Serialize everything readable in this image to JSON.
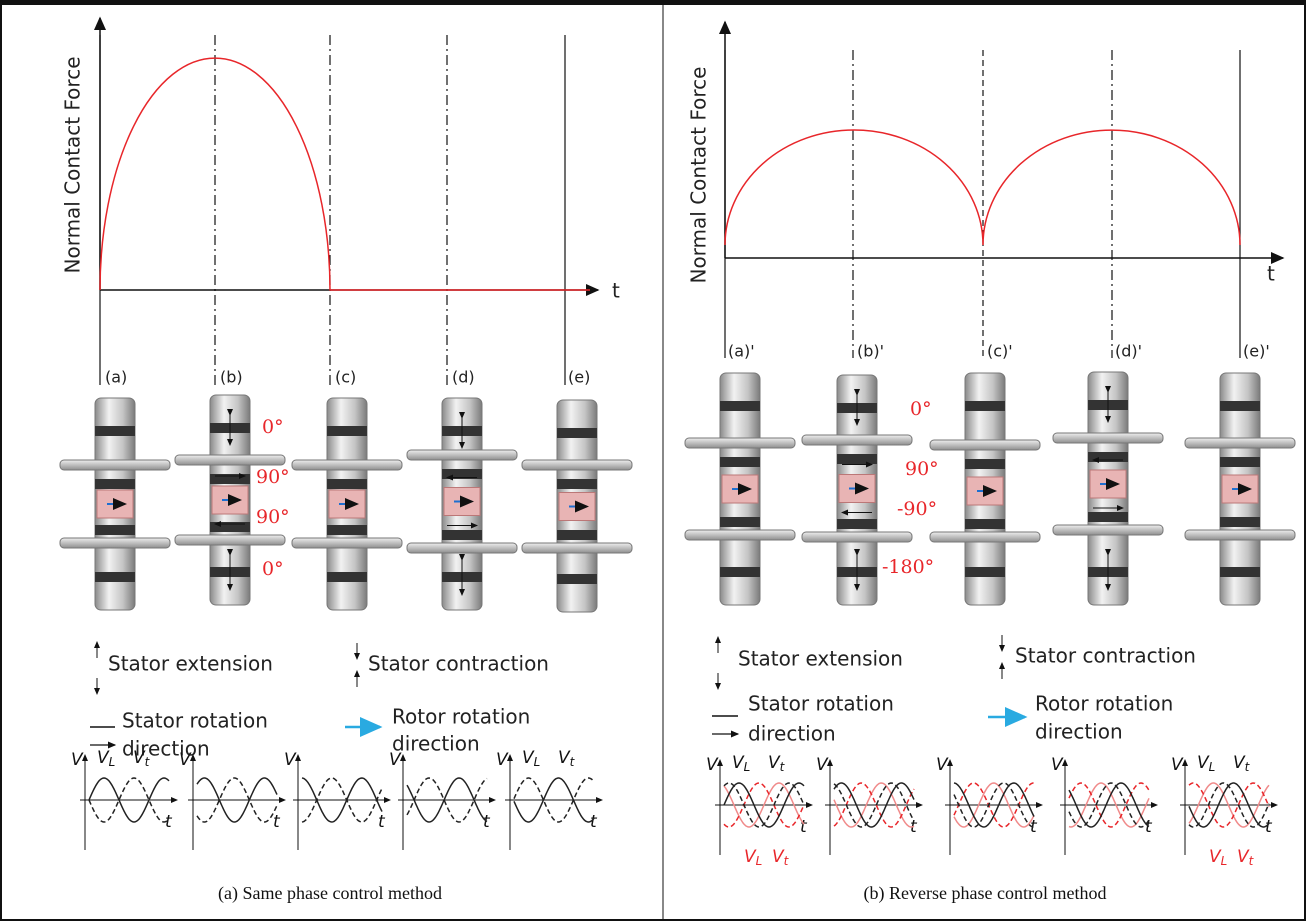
{
  "figure": {
    "panels": [
      {
        "y_label": "Normal Contact Force",
        "x_label": "t",
        "stages": [
          "(a)",
          "(b)",
          "(c)",
          "(d)",
          "(e)"
        ],
        "angles": [
          "0°",
          "90°",
          "90°",
          "0°"
        ],
        "legend": {
          "extension": "Stator extension",
          "contraction": "Stator contraction",
          "stator_rotation": [
            "Stator rotation",
            "direction"
          ],
          "rotor_rotation": [
            "Rotor rotation",
            "direction"
          ]
        },
        "waves": [
          {
            "v": "V",
            "t": "t",
            "labels": [
              {
                "main": "V",
                "sub": "L"
              },
              {
                "main": "V",
                "sub": "t"
              }
            ]
          },
          {
            "v": "V",
            "t": "t"
          },
          {
            "v": "V",
            "t": "t"
          },
          {
            "v": "V",
            "t": "t"
          },
          {
            "v": "V",
            "t": "t",
            "labels": [
              {
                "main": "V",
                "sub": "L"
              },
              {
                "main": "V",
                "sub": "t"
              }
            ]
          }
        ],
        "caption": "(a) Same phase control method"
      },
      {
        "y_label": "Normal Contact Force",
        "x_label": "t",
        "stages": [
          "(a)'",
          "(b)'",
          "(c)'",
          "(d)'",
          "(e)'"
        ],
        "angles": [
          "0°",
          "90°",
          "-90°",
          "-180°"
        ],
        "legend": {
          "extension": "Stator extension",
          "contraction": "Stator contraction",
          "stator_rotation": [
            "Stator rotation",
            "direction"
          ],
          "rotor_rotation": [
            "Rotor rotation",
            "direction"
          ]
        },
        "waves": [
          {
            "v": "V",
            "t": "t",
            "labels": [
              {
                "main": "V",
                "sub": "L"
              },
              {
                "main": "V",
                "sub": "t"
              }
            ],
            "red_labels": [
              {
                "main": "V",
                "sub": "L"
              },
              {
                "main": "V",
                "sub": "t"
              }
            ]
          },
          {
            "v": "V",
            "t": "t"
          },
          {
            "v": "V",
            "t": "t"
          },
          {
            "v": "V",
            "t": "t"
          },
          {
            "v": "V",
            "t": "t",
            "labels": [
              {
                "main": "V",
                "sub": "L"
              },
              {
                "main": "V",
                "sub": "t"
              }
            ],
            "red_labels": [
              {
                "main": "V",
                "sub": "L"
              },
              {
                "main": "V",
                "sub": "t"
              }
            ]
          }
        ],
        "caption": "(b) Reverse phase control method"
      }
    ]
  }
}
